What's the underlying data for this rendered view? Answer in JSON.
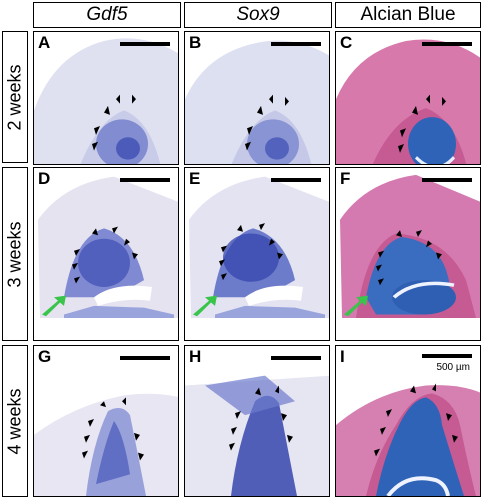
{
  "columns": [
    {
      "label": "Gdf5",
      "italic": true
    },
    {
      "label": "Sox9",
      "italic": true
    },
    {
      "label": "Alcian Blue",
      "italic": false
    }
  ],
  "rows": [
    {
      "label": "2 weeks"
    },
    {
      "label": "3 weeks"
    },
    {
      "label": "4 weeks"
    }
  ],
  "panels": [
    {
      "letter": "A",
      "stain": "ish"
    },
    {
      "letter": "B",
      "stain": "ish"
    },
    {
      "letter": "C",
      "stain": "alcian"
    },
    {
      "letter": "D",
      "stain": "ish"
    },
    {
      "letter": "E",
      "stain": "ish"
    },
    {
      "letter": "F",
      "stain": "alcian"
    },
    {
      "letter": "G",
      "stain": "ish"
    },
    {
      "letter": "H",
      "stain": "ish"
    },
    {
      "letter": "I",
      "stain": "alcian"
    }
  ],
  "scale_bar_label": "500 µm",
  "colors": {
    "ish_background": "#e3e4f2",
    "ish_stain": "#3f4fb4",
    "alcian_tissue": "#c65a93",
    "alcian_cartilage": "#2f63b8",
    "arrow_green": "#39c44a"
  }
}
